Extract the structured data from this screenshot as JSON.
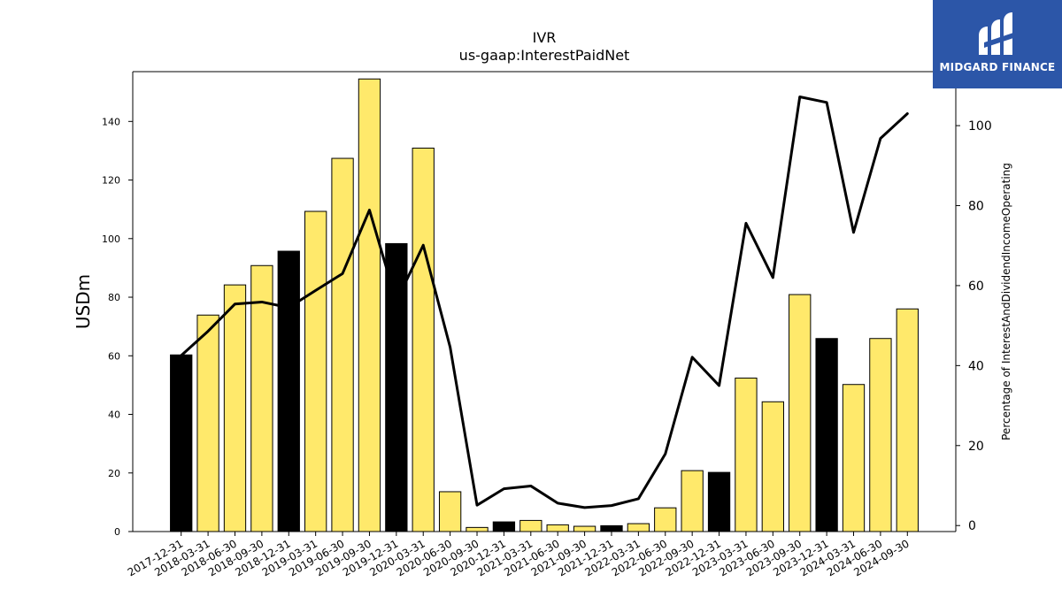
{
  "chart_data": {
    "type": "bar",
    "title": "IVR",
    "subtitle": "us-gaap:InterestPaidNet",
    "ylabel": "USDm",
    "y2label": "Percentage of InterestAndDividendIncomeOperating",
    "ylim": [
      0,
      157
    ],
    "y2lim": [
      -1.5,
      113.5
    ],
    "yticks": [
      0,
      20,
      40,
      60,
      80,
      100,
      120,
      140
    ],
    "y2ticks": [
      0,
      20,
      40,
      60,
      80,
      100
    ],
    "categories": [
      "2017-12-31",
      "2018-03-31",
      "2018-06-30",
      "2018-09-30",
      "2018-12-31",
      "2019-03-31",
      "2019-06-30",
      "2019-09-30",
      "2019-12-31",
      "2020-03-31",
      "2020-06-30",
      "2020-09-30",
      "2020-12-31",
      "2021-03-31",
      "2021-06-30",
      "2021-09-30",
      "2021-12-31",
      "2022-03-31",
      "2022-06-30",
      "2022-09-30",
      "2022-12-31",
      "2023-03-31",
      "2023-06-30",
      "2023-09-30",
      "2023-12-31",
      "2024-03-31",
      "2024-06-30",
      "2024-09-30"
    ],
    "series": [
      {
        "type": "bar",
        "values": [
          60.3,
          73.9,
          84.2,
          90.8,
          95.7,
          109.3,
          127.4,
          154.5,
          98.3,
          130.9,
          13.6,
          1.4,
          3.3,
          3.8,
          2.3,
          1.8,
          2.0,
          2.7,
          8.1,
          20.8,
          20.2,
          52.4,
          44.3,
          80.9,
          65.9,
          50.2,
          65.9,
          76.0
        ],
        "colors": [
          "#000000",
          "#ffe96b",
          "#ffe96b",
          "#ffe96b",
          "#000000",
          "#ffe96b",
          "#ffe96b",
          "#ffe96b",
          "#000000",
          "#ffe96b",
          "#ffe96b",
          "#ffe96b",
          "#000000",
          "#ffe96b",
          "#ffe96b",
          "#ffe96b",
          "#000000",
          "#ffe96b",
          "#ffe96b",
          "#ffe96b",
          "#000000",
          "#ffe96b",
          "#ffe96b",
          "#ffe96b",
          "#000000",
          "#ffe96b",
          "#ffe96b",
          "#ffe96b"
        ]
      },
      {
        "type": "line",
        "axis": "right",
        "color": "#000000",
        "values": [
          42.5,
          48.6,
          55.4,
          55.9,
          54.5,
          58.8,
          63.0,
          78.9,
          56.0,
          70.1,
          44.6,
          5.1,
          9.2,
          9.9,
          5.6,
          4.5,
          5.0,
          6.7,
          17.9,
          42.1,
          35.0,
          75.6,
          62.0,
          107.2,
          105.8,
          73.3,
          96.8,
          103.0
        ]
      }
    ],
    "grid": false,
    "legend": "none"
  },
  "logo": {
    "text": "MIDGARD FINANCE",
    "bg_color": "#2c56a8"
  }
}
